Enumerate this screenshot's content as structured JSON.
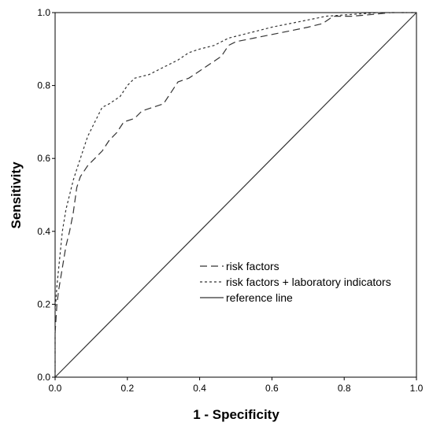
{
  "chart_data": {
    "type": "line",
    "title": "",
    "xlabel": "1 - Specificity",
    "ylabel": "Sensitivity",
    "xlim": [
      0,
      1
    ],
    "ylim": [
      0,
      1
    ],
    "x_ticks": [
      "0.0",
      "0.2",
      "0.4",
      "0.6",
      "0.8",
      "1.0"
    ],
    "y_ticks": [
      "0.0",
      "0.2",
      "0.4",
      "0.6",
      "0.8",
      "1.0"
    ],
    "grid": false,
    "legend_position": "lower-right",
    "series": [
      {
        "name": "risk factors",
        "style": "long-dash",
        "color": "#333333",
        "points": [
          [
            0.0,
            0.0
          ],
          [
            0.0,
            0.12
          ],
          [
            0.005,
            0.2
          ],
          [
            0.01,
            0.24
          ],
          [
            0.02,
            0.3
          ],
          [
            0.03,
            0.36
          ],
          [
            0.04,
            0.4
          ],
          [
            0.05,
            0.45
          ],
          [
            0.06,
            0.52
          ],
          [
            0.07,
            0.55
          ],
          [
            0.09,
            0.58
          ],
          [
            0.11,
            0.6
          ],
          [
            0.13,
            0.62
          ],
          [
            0.15,
            0.65
          ],
          [
            0.17,
            0.67
          ],
          [
            0.19,
            0.7
          ],
          [
            0.22,
            0.71
          ],
          [
            0.24,
            0.73
          ],
          [
            0.27,
            0.74
          ],
          [
            0.3,
            0.75
          ],
          [
            0.32,
            0.78
          ],
          [
            0.34,
            0.81
          ],
          [
            0.37,
            0.82
          ],
          [
            0.4,
            0.84
          ],
          [
            0.43,
            0.86
          ],
          [
            0.46,
            0.88
          ],
          [
            0.48,
            0.91
          ],
          [
            0.5,
            0.92
          ],
          [
            0.55,
            0.93
          ],
          [
            0.6,
            0.94
          ],
          [
            0.65,
            0.95
          ],
          [
            0.7,
            0.96
          ],
          [
            0.74,
            0.97
          ],
          [
            0.77,
            0.99
          ],
          [
            0.82,
            0.99
          ],
          [
            0.88,
            0.995
          ],
          [
            0.93,
            1.0
          ],
          [
            1.0,
            1.0
          ]
        ]
      },
      {
        "name": "risk factors + laboratory indicators",
        "style": "short-dash",
        "color": "#333333",
        "points": [
          [
            0.0,
            0.0
          ],
          [
            0.0,
            0.18
          ],
          [
            0.005,
            0.25
          ],
          [
            0.01,
            0.3
          ],
          [
            0.015,
            0.35
          ],
          [
            0.02,
            0.4
          ],
          [
            0.03,
            0.46
          ],
          [
            0.04,
            0.5
          ],
          [
            0.05,
            0.54
          ],
          [
            0.06,
            0.57
          ],
          [
            0.07,
            0.6
          ],
          [
            0.08,
            0.63
          ],
          [
            0.09,
            0.66
          ],
          [
            0.1,
            0.68
          ],
          [
            0.11,
            0.7
          ],
          [
            0.12,
            0.72
          ],
          [
            0.13,
            0.74
          ],
          [
            0.15,
            0.75
          ],
          [
            0.18,
            0.77
          ],
          [
            0.2,
            0.8
          ],
          [
            0.22,
            0.82
          ],
          [
            0.26,
            0.83
          ],
          [
            0.3,
            0.85
          ],
          [
            0.34,
            0.87
          ],
          [
            0.37,
            0.89
          ],
          [
            0.4,
            0.9
          ],
          [
            0.44,
            0.91
          ],
          [
            0.48,
            0.93
          ],
          [
            0.52,
            0.94
          ],
          [
            0.56,
            0.95
          ],
          [
            0.6,
            0.96
          ],
          [
            0.65,
            0.97
          ],
          [
            0.7,
            0.98
          ],
          [
            0.75,
            0.99
          ],
          [
            0.82,
            0.995
          ],
          [
            0.9,
            1.0
          ],
          [
            1.0,
            1.0
          ]
        ]
      },
      {
        "name": "reference line",
        "style": "solid",
        "color": "#333333",
        "points": [
          [
            0.0,
            0.0
          ],
          [
            1.0,
            1.0
          ]
        ]
      }
    ]
  }
}
